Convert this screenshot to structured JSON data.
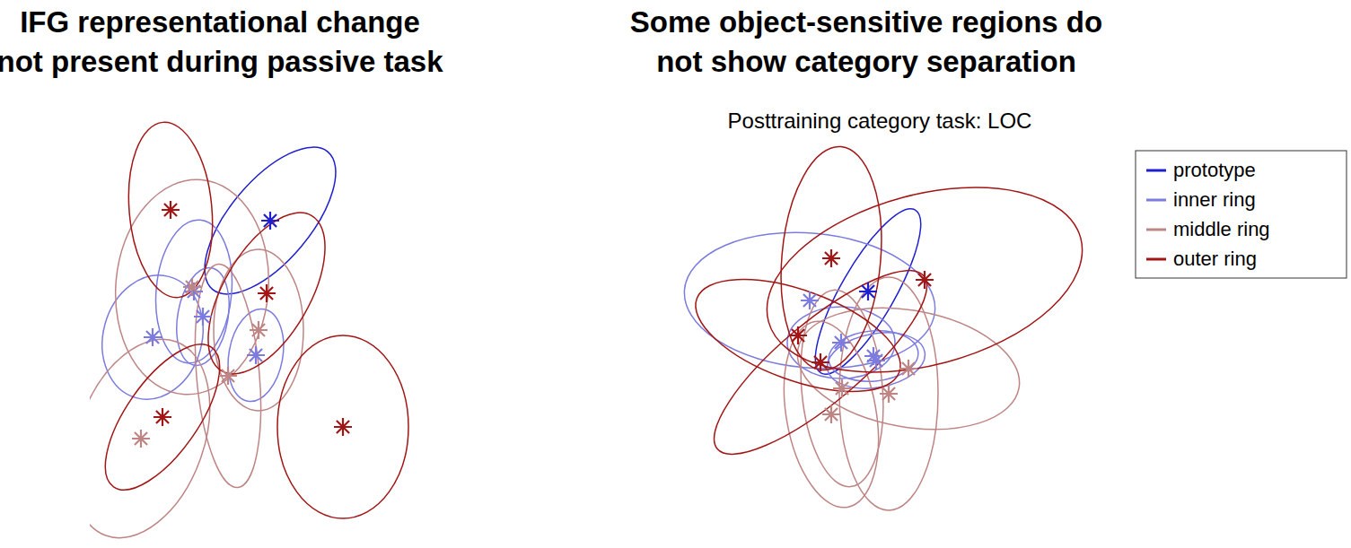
{
  "chart_data": [
    {
      "type": "scatter",
      "title": "IFG representational change\nnot present during passive task",
      "xlim": [
        0,
        400
      ],
      "ylim": [
        0,
        475
      ],
      "tick_labels": false,
      "grid": false,
      "legend": false,
      "marker": "asterisk",
      "series": [
        {
          "name": "prototype",
          "color": "#1f1fd0",
          "x": [
            201
          ],
          "values": [
            359
          ],
          "spread_major": [
            100
          ],
          "spread_minor": [
            45
          ],
          "spread_angle": [
            50
          ]
        },
        {
          "name": "inner ring",
          "color": "#7b7be0",
          "x": [
            116,
            126,
            70,
            185
          ],
          "values": [
            280,
            252,
            229,
            209
          ],
          "spread_major": [
            80,
            55,
            70,
            52
          ],
          "spread_minor": [
            42,
            28,
            55,
            30
          ],
          "spread_angle": [
            85,
            80,
            75,
            80
          ]
        },
        {
          "name": "middle ring",
          "color": "#bf8585",
          "x": [
            114,
            188,
            154,
            57
          ],
          "values": [
            285,
            237,
            186,
            116
          ],
          "spread_major": [
            120,
            90,
            125,
            115
          ],
          "spread_minor": [
            85,
            50,
            35,
            70
          ],
          "spread_angle": [
            85,
            90,
            95,
            70
          ]
        },
        {
          "name": "outer ring",
          "color": "#a31515",
          "x": [
            90,
            197,
            81,
            282
          ],
          "values": [
            371,
            278,
            140,
            129
          ],
          "spread_major": [
            98,
            100,
            95,
            102
          ],
          "spread_minor": [
            46,
            48,
            40,
            73
          ],
          "spread_angle": [
            95,
            60,
            55,
            90
          ]
        }
      ]
    },
    {
      "type": "scatter",
      "title": "Some object-sensitive regions do\nnot show category separation",
      "subtitle": "Posttraining category task: LOC",
      "xlim": [
        0,
        460
      ],
      "ylim": [
        0,
        465
      ],
      "tick_labels": false,
      "grid": false,
      "legend": "right",
      "marker": "asterisk",
      "series": [
        {
          "name": "prototype",
          "color": "#1f1fd0",
          "x": [
            207
          ],
          "values": [
            280
          ],
          "spread_major": [
            105
          ],
          "spread_minor": [
            30
          ],
          "spread_angle": [
            60
          ]
        },
        {
          "name": "inner ring",
          "color": "#7b7be0",
          "x": [
            142,
            177,
            216,
            213
          ],
          "values": [
            270,
            223,
            203,
            208
          ],
          "spread_major": [
            140,
            60,
            55,
            50
          ],
          "spread_minor": [
            75,
            40,
            30,
            28
          ],
          "spread_angle": [
            -5,
            0,
            10,
            5
          ]
        },
        {
          "name": "middle ring",
          "color": "#bf8585",
          "x": [
            252,
            230,
            178,
            166
          ],
          "values": [
            194,
            166,
            172,
            143
          ],
          "spread_major": [
            125,
            130,
            110,
            105
          ],
          "spread_minor": [
            65,
            55,
            45,
            50
          ],
          "spread_angle": [
            -10,
            90,
            95,
            100
          ]
        },
        {
          "name": "outer ring",
          "color": "#a31515",
          "x": [
            166,
            270,
            129,
            154
          ],
          "values": [
            317,
            293,
            231,
            201
          ],
          "spread_major": [
            125,
            180,
            120,
            150
          ],
          "spread_minor": [
            55,
            95,
            50,
            45
          ],
          "spread_angle": [
            85,
            15,
            -20,
            40
          ]
        }
      ]
    }
  ]
}
